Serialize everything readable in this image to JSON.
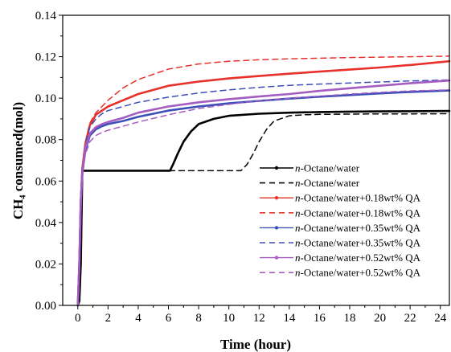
{
  "chart_data": {
    "type": "line",
    "title": "",
    "xlabel": "Time (hour)",
    "ylabel": "CH₄ consumed(mol)",
    "xlim": [
      -1,
      24.6
    ],
    "ylim": [
      0,
      0.14
    ],
    "xticks": [
      0,
      2,
      4,
      6,
      8,
      10,
      12,
      14,
      16,
      18,
      20,
      22,
      24
    ],
    "yticks": [
      0.0,
      0.02,
      0.04,
      0.06,
      0.08,
      0.1,
      0.12,
      0.14
    ],
    "ytick_labels": [
      "0.00",
      "0.02",
      "0.04",
      "0.06",
      "0.08",
      "0.10",
      "0.12",
      "0.14"
    ],
    "grid": false,
    "legend_position": "lower-right",
    "series": [
      {
        "name": "n-Octane/water",
        "name_prefix": "n",
        "name_rest": "-Octane/water",
        "color": "#000000",
        "dash": "solid",
        "marker": true,
        "x": [
          0,
          0.1,
          0.2,
          0.3,
          0.5,
          1,
          2,
          4,
          6.1,
          6.3,
          6.6,
          7,
          7.5,
          8,
          9,
          10,
          12,
          14,
          16,
          18,
          20,
          22,
          24.6
        ],
        "y": [
          0,
          0.002,
          0.02,
          0.065,
          0.065,
          0.065,
          0.065,
          0.065,
          0.065,
          0.068,
          0.073,
          0.079,
          0.084,
          0.0875,
          0.09,
          0.0915,
          0.0925,
          0.093,
          0.0933,
          0.0935,
          0.0936,
          0.0937,
          0.0938
        ]
      },
      {
        "name": "n-Octane/water",
        "name_prefix": "n",
        "name_rest": "-Octane/water",
        "color": "#000000",
        "dash": "dashed",
        "marker": false,
        "x": [
          0,
          0.1,
          0.2,
          0.3,
          0.5,
          1,
          2,
          4,
          6,
          8,
          10,
          10.8,
          11.2,
          11.6,
          12,
          12.5,
          13,
          14,
          15,
          16,
          18,
          20,
          22,
          24.6
        ],
        "y": [
          0,
          0.002,
          0.02,
          0.065,
          0.065,
          0.065,
          0.065,
          0.065,
          0.065,
          0.065,
          0.065,
          0.065,
          0.068,
          0.073,
          0.079,
          0.085,
          0.089,
          0.0915,
          0.092,
          0.0922,
          0.0923,
          0.0924,
          0.0924,
          0.0925
        ]
      },
      {
        "name": "n-Octane/water+0.18wt% QA",
        "name_prefix": "n",
        "name_rest": "-Octane/water+0.18wt% QA",
        "color": "#e8312a",
        "dash": "solid",
        "marker": true,
        "x": [
          0,
          0.1,
          0.2,
          0.3,
          0.5,
          0.8,
          1.2,
          1.6,
          2,
          3,
          4,
          6,
          8,
          10,
          12,
          14,
          16,
          18,
          20,
          22,
          24.6
        ],
        "y": [
          0,
          0.02,
          0.05,
          0.066,
          0.078,
          0.087,
          0.092,
          0.094,
          0.096,
          0.099,
          0.102,
          0.106,
          0.108,
          0.1095,
          0.1107,
          0.1118,
          0.1128,
          0.1138,
          0.1148,
          0.116,
          0.1178
        ]
      },
      {
        "name": "n-Octane/water+0.18wt% QA",
        "name_prefix": "n",
        "name_rest": "-Octane/water+0.18wt% QA",
        "color": "#e8312a",
        "dash": "dashed",
        "marker": false,
        "x": [
          0,
          0.1,
          0.2,
          0.3,
          0.5,
          0.8,
          1.2,
          1.6,
          2,
          3,
          4,
          6,
          8,
          10,
          12,
          14,
          16,
          18,
          20,
          22,
          24.6
        ],
        "y": [
          0,
          0.02,
          0.05,
          0.066,
          0.079,
          0.088,
          0.093,
          0.096,
          0.099,
          0.105,
          0.109,
          0.114,
          0.1165,
          0.1178,
          0.1185,
          0.119,
          0.1193,
          0.1196,
          0.1198,
          0.12,
          0.1203
        ]
      },
      {
        "name": "n-Octane/water+0.35wt% QA",
        "name_prefix": "n",
        "name_rest": "-Octane/water+0.35wt% QA",
        "color": "#3b4fb8",
        "dash": "solid",
        "marker": true,
        "x": [
          0,
          0.1,
          0.2,
          0.3,
          0.5,
          0.8,
          1.2,
          1.6,
          2,
          3,
          4,
          6,
          8,
          10,
          12,
          14,
          16,
          18,
          20,
          22,
          24.6
        ],
        "y": [
          0,
          0.02,
          0.05,
          0.064,
          0.075,
          0.082,
          0.085,
          0.0865,
          0.0875,
          0.089,
          0.091,
          0.094,
          0.096,
          0.0975,
          0.0987,
          0.0998,
          0.1007,
          0.1015,
          0.1023,
          0.103,
          0.1037
        ]
      },
      {
        "name": "n-Octane/water+0.35wt% QA",
        "name_prefix": "n",
        "name_rest": "-Octane/water+0.35wt% QA",
        "color": "#3b4fb8",
        "dash": "dashed",
        "marker": false,
        "x": [
          0,
          0.1,
          0.2,
          0.3,
          0.5,
          0.8,
          1.2,
          1.6,
          2,
          3,
          4,
          6,
          8,
          10,
          12,
          14,
          16,
          18,
          20,
          22,
          24.6
        ],
        "y": [
          0,
          0.02,
          0.05,
          0.066,
          0.078,
          0.086,
          0.09,
          0.0925,
          0.094,
          0.096,
          0.098,
          0.1005,
          0.1025,
          0.104,
          0.1052,
          0.1062,
          0.1068,
          0.1073,
          0.1078,
          0.1083,
          0.1088
        ]
      },
      {
        "name": "n-Octane/water+0.52wt% QA",
        "name_prefix": "n",
        "name_rest": "-Octane/water+0.52wt% QA",
        "color": "#a45cc0",
        "dash": "solid",
        "marker": true,
        "x": [
          0,
          0.1,
          0.2,
          0.3,
          0.5,
          0.8,
          1.2,
          1.6,
          2,
          3,
          4,
          6,
          8,
          10,
          12,
          14,
          16,
          18,
          20,
          22,
          24.6
        ],
        "y": [
          0,
          0.02,
          0.05,
          0.064,
          0.076,
          0.083,
          0.086,
          0.0875,
          0.0885,
          0.0905,
          0.093,
          0.096,
          0.098,
          0.0995,
          0.1008,
          0.102,
          0.1035,
          0.1048,
          0.106,
          0.1072,
          0.1085
        ]
      },
      {
        "name": "n-Octane/water+0.52wt% QA",
        "name_prefix": "n",
        "name_rest": "-Octane/water+0.52wt% QA",
        "color": "#a45cc0",
        "dash": "dashed",
        "marker": false,
        "x": [
          0,
          0.1,
          0.2,
          0.3,
          0.5,
          0.8,
          1.2,
          1.6,
          2,
          3,
          4,
          6,
          8,
          10,
          12,
          14,
          16,
          18,
          20,
          22,
          24.6
        ],
        "y": [
          0,
          0.02,
          0.05,
          0.062,
          0.073,
          0.079,
          0.082,
          0.0835,
          0.0845,
          0.0865,
          0.0885,
          0.092,
          0.095,
          0.097,
          0.0988,
          0.1,
          0.101,
          0.102,
          0.1028,
          0.1035,
          0.104
        ]
      }
    ]
  }
}
